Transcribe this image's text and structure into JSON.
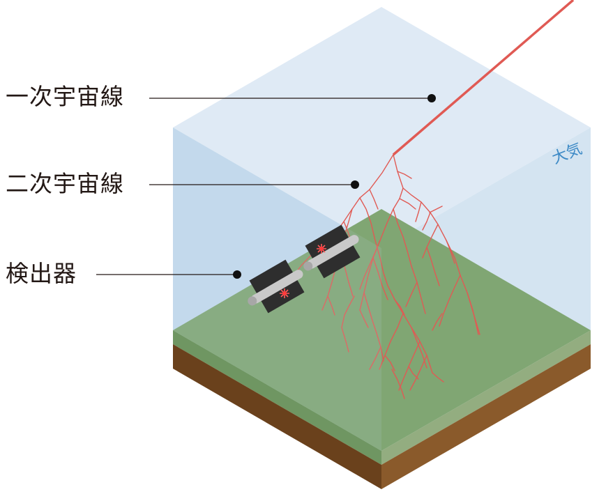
{
  "labels": {
    "primary_cosmic_ray": "一次宇宙線",
    "secondary_cosmic_ray": "二次宇宙線",
    "detector": "検出器",
    "atmosphere": "大気"
  },
  "colors": {
    "ray": "#e05a54",
    "ground_top": "#7fa572",
    "soil": "#7c4f25",
    "atmosphere_text": "#3d8ac6",
    "detector_body": "#2e2e2e"
  }
}
